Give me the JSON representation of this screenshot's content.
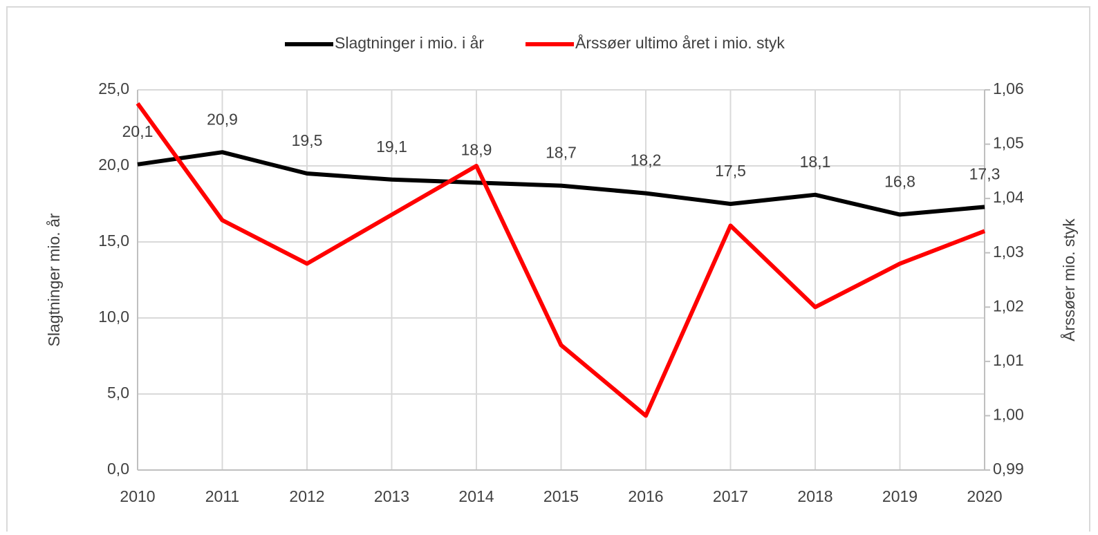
{
  "chart_data": {
    "type": "line",
    "x": [
      2010,
      2011,
      2012,
      2013,
      2014,
      2015,
      2016,
      2017,
      2018,
      2019,
      2020
    ],
    "xlim": [
      2010,
      2020
    ],
    "xticks": [
      2010,
      2011,
      2012,
      2013,
      2014,
      2015,
      2016,
      2017,
      2018,
      2019,
      2020
    ],
    "y_label": "Slagtninger mio. år",
    "y2_label": "Årssøer mio. styk",
    "ylim": [
      0,
      25
    ],
    "yticks": [
      {
        "value": 0,
        "label": "0,0"
      },
      {
        "value": 5,
        "label": "5,0"
      },
      {
        "value": 10,
        "label": "10,0"
      },
      {
        "value": 15,
        "label": "15,0"
      },
      {
        "value": 20,
        "label": "20,0"
      },
      {
        "value": 25,
        "label": "25,0"
      }
    ],
    "y2lim": [
      0.99,
      1.06
    ],
    "y2ticks": [
      {
        "value": 0.99,
        "label": "0,99"
      },
      {
        "value": 1.0,
        "label": "1,00"
      },
      {
        "value": 1.01,
        "label": "1,01"
      },
      {
        "value": 1.02,
        "label": "1,02"
      },
      {
        "value": 1.03,
        "label": "1,03"
      },
      {
        "value": 1.04,
        "label": "1,04"
      },
      {
        "value": 1.05,
        "label": "1,05"
      },
      {
        "value": 1.06,
        "label": "1,06"
      }
    ],
    "grid": true,
    "legend": "top",
    "series": [
      {
        "name": "Slagtninger i mio. i år",
        "color": "#000000",
        "axis": "y",
        "values": [
          20.1,
          20.9,
          19.5,
          19.1,
          18.9,
          18.7,
          18.2,
          17.5,
          18.1,
          16.8,
          17.3
        ],
        "value_labels": [
          "20,1",
          "20,9",
          "19,5",
          "19,1",
          "18,9",
          "18,7",
          "18,2",
          "17,5",
          "18,1",
          "16,8",
          "17,3"
        ]
      },
      {
        "name": "Årssøer ultimo året i mio. styk",
        "color": "#ff0000",
        "axis": "y2",
        "values": [
          1.0575,
          1.036,
          1.028,
          1.037,
          1.046,
          1.013,
          1.0,
          1.035,
          1.02,
          1.028,
          1.034
        ]
      }
    ]
  }
}
